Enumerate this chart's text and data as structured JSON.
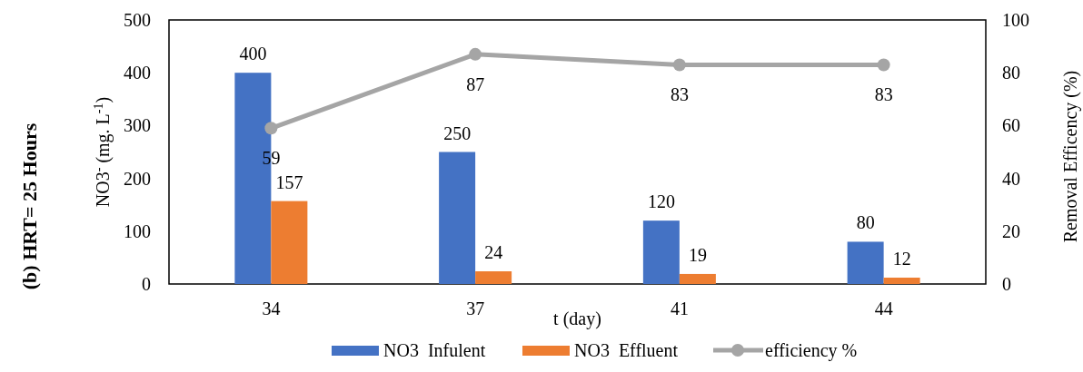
{
  "chart_data": {
    "type": "bar",
    "title": "(b) HRT= 25 Hours",
    "xlabel": "t (day)",
    "ylabel": "NO3$^{-}$ (mg. L$^{-1}$)",
    "y2label": "Removal Efficency (%)",
    "categories": [
      "34",
      "37",
      "41",
      "44"
    ],
    "series": [
      {
        "name": "NO3  Infulent",
        "color": "#4472c4",
        "values": [
          400,
          250,
          120,
          80
        ]
      },
      {
        "name": "NO3  Effluent",
        "color": "#ed7d31",
        "values": [
          157,
          24,
          19,
          12
        ]
      },
      {
        "name": "efficiency %",
        "type": "line",
        "axis": "y2",
        "color": "#a5a5a5",
        "marker": "circle",
        "values": [
          59,
          87,
          83,
          83
        ]
      }
    ],
    "ylim": [
      0,
      500
    ],
    "yticks": [
      0,
      100,
      200,
      300,
      400,
      500
    ],
    "y2lim": [
      0,
      100
    ],
    "y2ticks": [
      0,
      20,
      40,
      60,
      80,
      100
    ],
    "data_labels": true,
    "legend": "bottom",
    "grid": false
  }
}
